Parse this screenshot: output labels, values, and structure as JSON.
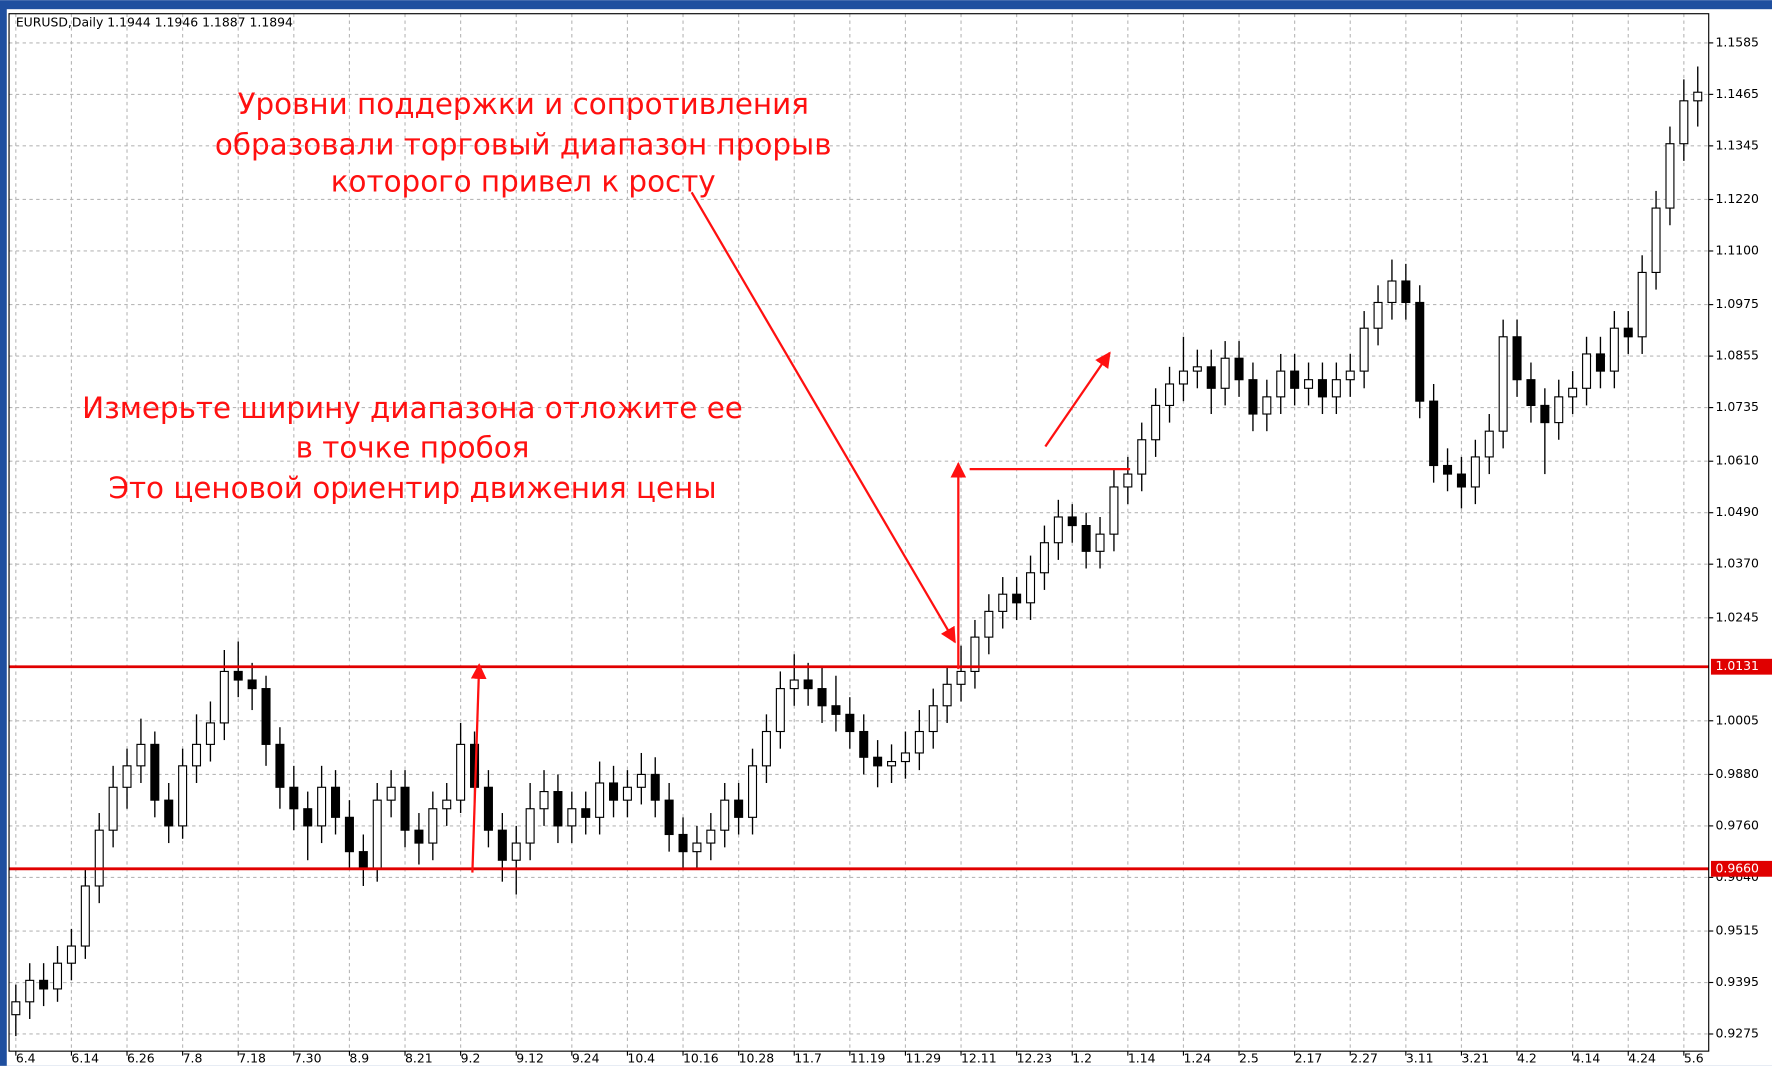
{
  "chart_data": {
    "type": "candlestick",
    "title": "EURUSD,Daily  1.1944 1.1946 1.1887 1.1894",
    "annotations": [
      [
        "Уровни поддержки и сопротивления",
        "образовали торговый диапазон прорыв",
        "которого привел к росту"
      ],
      [
        "Измерьте ширину диапазона отложите ее",
        "в точке пробоя",
        "Это ценовой ориентир движения цены"
      ]
    ],
    "ylim": [
      0.9235,
      1.1653
    ],
    "yticks": [
      {
        "value": 1.1585,
        "label": "1.1585"
      },
      {
        "value": 1.1465,
        "label": "1.1465"
      },
      {
        "value": 1.1345,
        "label": "1.1345"
      },
      {
        "value": 1.122,
        "label": "1.1220"
      },
      {
        "value": 1.11,
        "label": "1.1100"
      },
      {
        "value": 1.0975,
        "label": "1.0975"
      },
      {
        "value": 1.0855,
        "label": "1.0855"
      },
      {
        "value": 1.0735,
        "label": "1.0735"
      },
      {
        "value": 1.061,
        "label": "1.0610"
      },
      {
        "value": 1.049,
        "label": "1.0490"
      },
      {
        "value": 1.037,
        "label": "1.0370"
      },
      {
        "value": 1.0245,
        "label": "1.0245"
      },
      {
        "value": 1.0005,
        "label": "1.0005"
      },
      {
        "value": 0.988,
        "label": "0.9880"
      },
      {
        "value": 0.976,
        "label": "0.9760"
      },
      {
        "value": 0.964,
        "label": "0.9640"
      },
      {
        "value": 0.9515,
        "label": "0.9515"
      },
      {
        "value": 0.9395,
        "label": "0.9395"
      },
      {
        "value": 0.9275,
        "label": "0.9275"
      }
    ],
    "levels": [
      {
        "value": 1.0131,
        "label": "1.0131"
      },
      {
        "value": 0.966,
        "label": "0.9660"
      }
    ],
    "level_color": "#e00000",
    "grid": true,
    "categories": [
      "6.4",
      null,
      null,
      null,
      "6.14",
      null,
      null,
      null,
      "6.26",
      null,
      null,
      null,
      "7.8",
      null,
      null,
      null,
      "7.18",
      null,
      null,
      null,
      "7.30",
      null,
      null,
      null,
      "8.9",
      null,
      null,
      null,
      "8.21",
      null,
      null,
      null,
      "9.2",
      null,
      null,
      null,
      "9.12",
      null,
      null,
      null,
      "9.24",
      null,
      null,
      null,
      "10.4",
      null,
      null,
      null,
      "10.16",
      null,
      null,
      null,
      "10.28",
      null,
      null,
      null,
      "11.7",
      null,
      null,
      null,
      "11.19",
      null,
      null,
      null,
      "11.29",
      null,
      null,
      null,
      "12.11",
      null,
      null,
      null,
      "12.23",
      null,
      null,
      null,
      "1.2",
      null,
      null,
      null,
      "1.14",
      null,
      null,
      null,
      "1.24",
      null,
      null,
      null,
      "2.5",
      null,
      null,
      null,
      "2.17",
      null,
      null,
      null,
      "2.27",
      null,
      null,
      null,
      "3.11",
      null,
      null,
      null,
      "3.21",
      null,
      null,
      null,
      "4.2",
      null,
      null,
      null,
      "4.14",
      null,
      null,
      null,
      "4.24",
      null,
      null,
      null,
      "5.6",
      null
    ],
    "ohlc": [
      [
        0.932,
        0.939,
        0.927,
        0.935
      ],
      [
        0.935,
        0.944,
        0.931,
        0.94
      ],
      [
        0.94,
        0.944,
        0.934,
        0.938
      ],
      [
        0.938,
        0.948,
        0.935,
        0.944
      ],
      [
        0.944,
        0.952,
        0.94,
        0.948
      ],
      [
        0.948,
        0.966,
        0.945,
        0.962
      ],
      [
        0.962,
        0.979,
        0.958,
        0.975
      ],
      [
        0.975,
        0.99,
        0.971,
        0.985
      ],
      [
        0.985,
        0.994,
        0.98,
        0.99
      ],
      [
        0.99,
        1.001,
        0.986,
        0.995
      ],
      [
        0.995,
        0.998,
        0.978,
        0.982
      ],
      [
        0.982,
        0.986,
        0.972,
        0.976
      ],
      [
        0.976,
        0.994,
        0.973,
        0.99
      ],
      [
        0.99,
        1.002,
        0.986,
        0.995
      ],
      [
        0.995,
        1.005,
        0.991,
        1.0
      ],
      [
        1.0,
        1.017,
        0.996,
        1.012
      ],
      [
        1.012,
        1.019,
        1.006,
        1.01
      ],
      [
        1.01,
        1.014,
        1.003,
        1.008
      ],
      [
        1.008,
        1.011,
        0.99,
        0.995
      ],
      [
        0.995,
        0.999,
        0.98,
        0.985
      ],
      [
        0.985,
        0.99,
        0.975,
        0.98
      ],
      [
        0.98,
        0.984,
        0.968,
        0.976
      ],
      [
        0.976,
        0.99,
        0.972,
        0.985
      ],
      [
        0.985,
        0.989,
        0.974,
        0.978
      ],
      [
        0.978,
        0.982,
        0.966,
        0.97
      ],
      [
        0.97,
        0.974,
        0.962,
        0.966
      ],
      [
        0.966,
        0.986,
        0.963,
        0.982
      ],
      [
        0.982,
        0.989,
        0.978,
        0.985
      ],
      [
        0.985,
        0.989,
        0.971,
        0.975
      ],
      [
        0.975,
        0.979,
        0.967,
        0.972
      ],
      [
        0.972,
        0.984,
        0.968,
        0.98
      ],
      [
        0.98,
        0.986,
        0.976,
        0.982
      ],
      [
        0.982,
        1.0,
        0.979,
        0.995
      ],
      [
        0.995,
        0.998,
        0.981,
        0.985
      ],
      [
        0.985,
        0.989,
        0.971,
        0.975
      ],
      [
        0.975,
        0.979,
        0.963,
        0.968
      ],
      [
        0.968,
        0.976,
        0.96,
        0.972
      ],
      [
        0.972,
        0.986,
        0.968,
        0.98
      ],
      [
        0.98,
        0.989,
        0.976,
        0.984
      ],
      [
        0.984,
        0.988,
        0.972,
        0.976
      ],
      [
        0.976,
        0.984,
        0.972,
        0.98
      ],
      [
        0.98,
        0.984,
        0.974,
        0.978
      ],
      [
        0.978,
        0.991,
        0.974,
        0.986
      ],
      [
        0.986,
        0.99,
        0.978,
        0.982
      ],
      [
        0.982,
        0.989,
        0.978,
        0.985
      ],
      [
        0.985,
        0.993,
        0.981,
        0.988
      ],
      [
        0.988,
        0.992,
        0.978,
        0.982
      ],
      [
        0.982,
        0.986,
        0.97,
        0.974
      ],
      [
        0.974,
        0.978,
        0.966,
        0.97
      ],
      [
        0.97,
        0.976,
        0.966,
        0.972
      ],
      [
        0.972,
        0.979,
        0.968,
        0.975
      ],
      [
        0.975,
        0.986,
        0.971,
        0.982
      ],
      [
        0.982,
        0.986,
        0.974,
        0.978
      ],
      [
        0.978,
        0.994,
        0.974,
        0.99
      ],
      [
        0.99,
        1.002,
        0.986,
        0.998
      ],
      [
        0.998,
        1.012,
        0.994,
        1.008
      ],
      [
        1.008,
        1.016,
        1.004,
        1.01
      ],
      [
        1.01,
        1.014,
        1.004,
        1.008
      ],
      [
        1.008,
        1.013,
        1.0,
        1.004
      ],
      [
        1.004,
        1.011,
        0.998,
        1.002
      ],
      [
        1.002,
        1.006,
        0.994,
        0.998
      ],
      [
        0.998,
        1.002,
        0.988,
        0.992
      ],
      [
        0.992,
        0.996,
        0.985,
        0.99
      ],
      [
        0.99,
        0.995,
        0.986,
        0.991
      ],
      [
        0.991,
        0.998,
        0.987,
        0.993
      ],
      [
        0.993,
        1.003,
        0.989,
        0.998
      ],
      [
        0.998,
        1.008,
        0.994,
        1.004
      ],
      [
        1.004,
        1.013,
        1.0,
        1.009
      ],
      [
        1.009,
        1.018,
        1.005,
        1.012
      ],
      [
        1.012,
        1.024,
        1.008,
        1.02
      ],
      [
        1.02,
        1.03,
        1.016,
        1.026
      ],
      [
        1.026,
        1.034,
        1.022,
        1.03
      ],
      [
        1.03,
        1.034,
        1.024,
        1.028
      ],
      [
        1.028,
        1.039,
        1.024,
        1.035
      ],
      [
        1.035,
        1.046,
        1.031,
        1.042
      ],
      [
        1.042,
        1.052,
        1.038,
        1.048
      ],
      [
        1.048,
        1.051,
        1.042,
        1.046
      ],
      [
        1.046,
        1.049,
        1.036,
        1.04
      ],
      [
        1.04,
        1.048,
        1.036,
        1.044
      ],
      [
        1.044,
        1.059,
        1.04,
        1.055
      ],
      [
        1.055,
        1.062,
        1.051,
        1.058
      ],
      [
        1.058,
        1.07,
        1.054,
        1.066
      ],
      [
        1.066,
        1.078,
        1.062,
        1.074
      ],
      [
        1.074,
        1.083,
        1.07,
        1.079
      ],
      [
        1.079,
        1.09,
        1.075,
        1.082
      ],
      [
        1.082,
        1.087,
        1.078,
        1.083
      ],
      [
        1.083,
        1.087,
        1.072,
        1.078
      ],
      [
        1.078,
        1.089,
        1.074,
        1.085
      ],
      [
        1.085,
        1.089,
        1.076,
        1.08
      ],
      [
        1.08,
        1.084,
        1.068,
        1.072
      ],
      [
        1.072,
        1.08,
        1.068,
        1.076
      ],
      [
        1.076,
        1.086,
        1.072,
        1.082
      ],
      [
        1.082,
        1.086,
        1.074,
        1.078
      ],
      [
        1.078,
        1.084,
        1.074,
        1.08
      ],
      [
        1.08,
        1.084,
        1.072,
        1.076
      ],
      [
        1.076,
        1.084,
        1.072,
        1.08
      ],
      [
        1.08,
        1.086,
        1.076,
        1.082
      ],
      [
        1.082,
        1.096,
        1.078,
        1.092
      ],
      [
        1.092,
        1.102,
        1.088,
        1.098
      ],
      [
        1.098,
        1.108,
        1.094,
        1.103
      ],
      [
        1.103,
        1.107,
        1.094,
        1.098
      ],
      [
        1.098,
        1.102,
        1.071,
        1.075
      ],
      [
        1.075,
        1.079,
        1.056,
        1.06
      ],
      [
        1.06,
        1.064,
        1.054,
        1.058
      ],
      [
        1.058,
        1.062,
        1.05,
        1.055
      ],
      [
        1.055,
        1.066,
        1.051,
        1.062
      ],
      [
        1.062,
        1.072,
        1.058,
        1.068
      ],
      [
        1.068,
        1.094,
        1.064,
        1.09
      ],
      [
        1.09,
        1.094,
        1.076,
        1.08
      ],
      [
        1.08,
        1.084,
        1.07,
        1.074
      ],
      [
        1.074,
        1.078,
        1.058,
        1.07
      ],
      [
        1.07,
        1.08,
        1.066,
        1.076
      ],
      [
        1.076,
        1.082,
        1.072,
        1.078
      ],
      [
        1.078,
        1.09,
        1.074,
        1.086
      ],
      [
        1.086,
        1.09,
        1.078,
        1.082
      ],
      [
        1.082,
        1.096,
        1.078,
        1.092
      ],
      [
        1.092,
        1.096,
        1.086,
        1.09
      ],
      [
        1.09,
        1.109,
        1.086,
        1.105
      ],
      [
        1.105,
        1.124,
        1.101,
        1.12
      ],
      [
        1.12,
        1.139,
        1.116,
        1.135
      ],
      [
        1.135,
        1.15,
        1.131,
        1.145
      ],
      [
        1.145,
        1.153,
        1.139,
        1.147
      ]
    ]
  }
}
